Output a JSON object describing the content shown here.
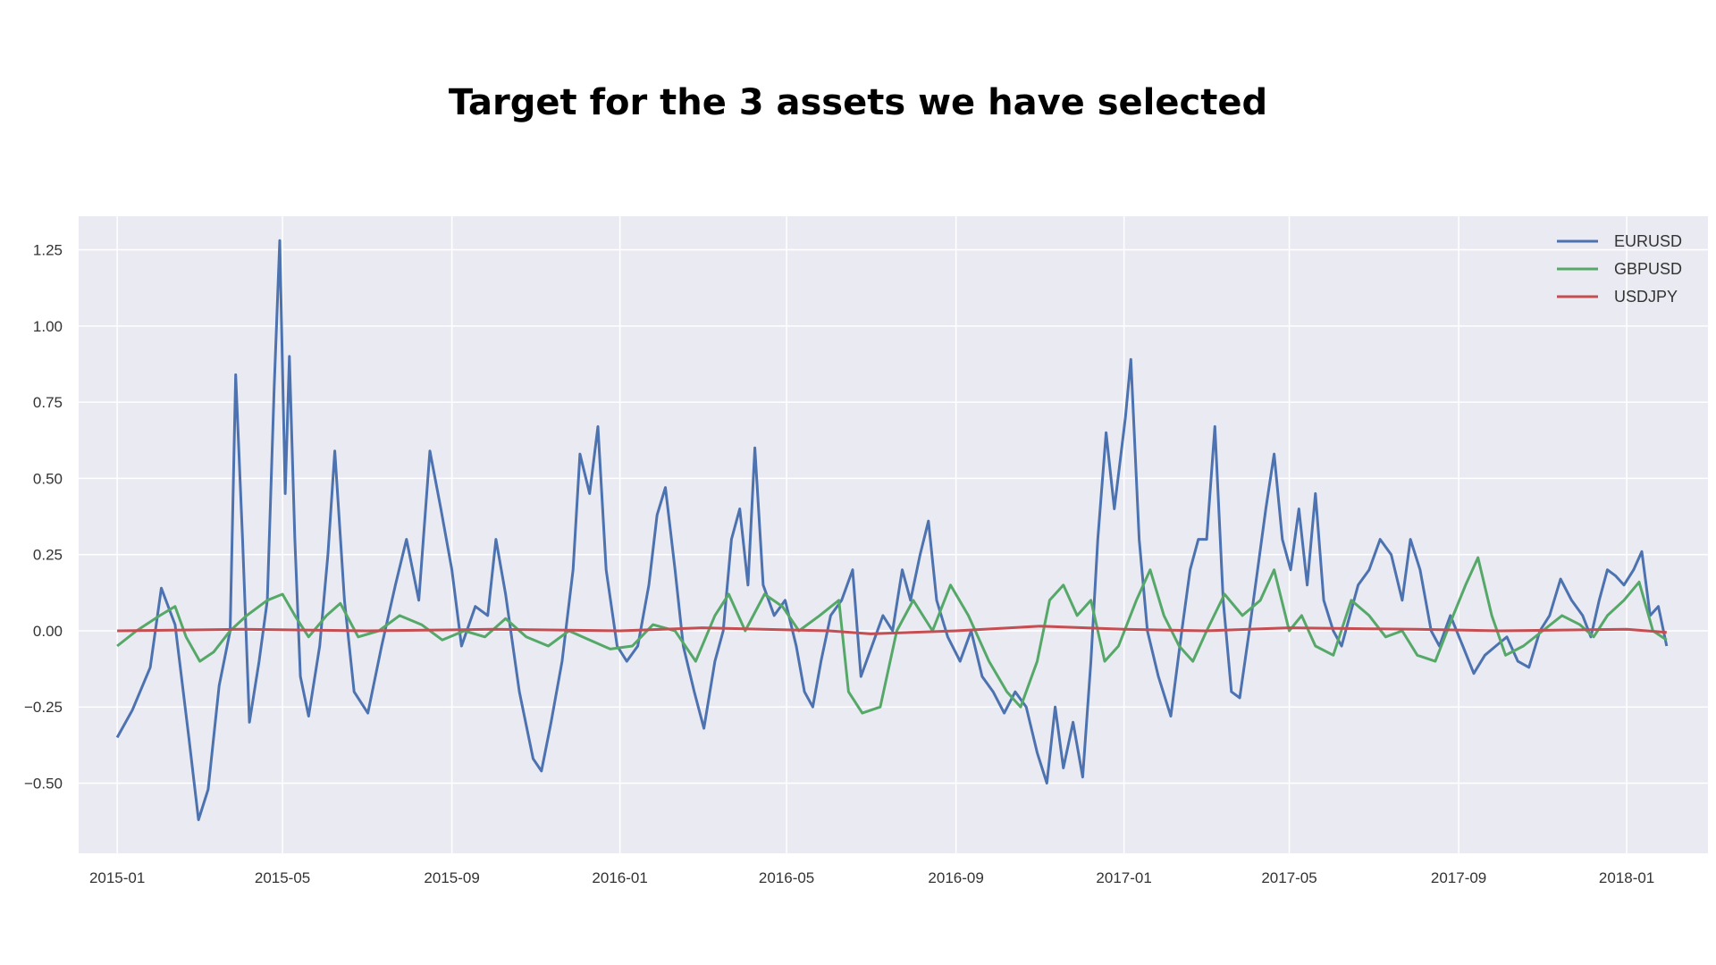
{
  "page": {
    "title": "Target for the 3 assets we have selected"
  },
  "chart_data": {
    "type": "line",
    "title": "",
    "xlabel": "",
    "ylabel": "",
    "x_range": [
      "2014-12-04",
      "2018-03-01"
    ],
    "ylim": [
      -0.73,
      1.36
    ],
    "x_ticks": [
      "2015-01",
      "2015-05",
      "2015-09",
      "2016-01",
      "2016-05",
      "2016-09",
      "2017-01",
      "2017-05",
      "2017-09",
      "2018-01"
    ],
    "y_ticks": [
      -0.5,
      -0.25,
      0,
      0.25,
      0.5,
      0.75,
      1,
      1.25
    ],
    "y_tick_labels": [
      "−0.50",
      "−0.25",
      "0.00",
      "0.25",
      "0.50",
      "0.75",
      "1.00",
      "1.25"
    ],
    "grid": true,
    "legend_position": "top-right",
    "colors": {
      "background": "#eaeaf2",
      "grid": "#ffffff"
    },
    "series": [
      {
        "name": "EURUSD",
        "color": "#4c72b0",
        "points": [
          [
            "2015-01-01",
            -0.35
          ],
          [
            "2015-01-12",
            -0.26
          ],
          [
            "2015-01-25",
            -0.12
          ],
          [
            "2015-02-02",
            0.14
          ],
          [
            "2015-02-12",
            0.02
          ],
          [
            "2015-02-22",
            -0.35
          ],
          [
            "2015-03-01",
            -0.62
          ],
          [
            "2015-03-08",
            -0.52
          ],
          [
            "2015-03-16",
            -0.18
          ],
          [
            "2015-03-24",
            0.0
          ],
          [
            "2015-03-28",
            0.84
          ],
          [
            "2015-04-02",
            0.3
          ],
          [
            "2015-04-07",
            -0.3
          ],
          [
            "2015-04-14",
            -0.1
          ],
          [
            "2015-04-20",
            0.1
          ],
          [
            "2015-04-25",
            0.8
          ],
          [
            "2015-04-29",
            1.28
          ],
          [
            "2015-05-03",
            0.45
          ],
          [
            "2015-05-06",
            0.9
          ],
          [
            "2015-05-10",
            0.3
          ],
          [
            "2015-05-14",
            -0.15
          ],
          [
            "2015-05-20",
            -0.28
          ],
          [
            "2015-05-28",
            -0.05
          ],
          [
            "2015-06-03",
            0.25
          ],
          [
            "2015-06-08",
            0.59
          ],
          [
            "2015-06-15",
            0.1
          ],
          [
            "2015-06-22",
            -0.2
          ],
          [
            "2015-07-02",
            -0.27
          ],
          [
            "2015-07-12",
            -0.05
          ],
          [
            "2015-07-22",
            0.15
          ],
          [
            "2015-07-30",
            0.3
          ],
          [
            "2015-08-08",
            0.1
          ],
          [
            "2015-08-16",
            0.59
          ],
          [
            "2015-08-24",
            0.4
          ],
          [
            "2015-09-01",
            0.2
          ],
          [
            "2015-09-08",
            -0.05
          ],
          [
            "2015-09-18",
            0.08
          ],
          [
            "2015-09-27",
            0.05
          ],
          [
            "2015-10-03",
            0.3
          ],
          [
            "2015-10-10",
            0.12
          ],
          [
            "2015-10-20",
            -0.2
          ],
          [
            "2015-10-30",
            -0.42
          ],
          [
            "2015-11-05",
            -0.46
          ],
          [
            "2015-11-12",
            -0.3
          ],
          [
            "2015-11-20",
            -0.1
          ],
          [
            "2015-11-28",
            0.2
          ],
          [
            "2015-12-03",
            0.58
          ],
          [
            "2015-12-10",
            0.45
          ],
          [
            "2015-12-16",
            0.67
          ],
          [
            "2015-12-22",
            0.2
          ],
          [
            "2015-12-30",
            -0.05
          ],
          [
            "2016-01-06",
            -0.1
          ],
          [
            "2016-01-14",
            -0.05
          ],
          [
            "2016-01-22",
            0.15
          ],
          [
            "2016-01-28",
            0.38
          ],
          [
            "2016-02-03",
            0.47
          ],
          [
            "2016-02-10",
            0.2
          ],
          [
            "2016-02-16",
            -0.05
          ],
          [
            "2016-02-24",
            -0.2
          ],
          [
            "2016-03-02",
            -0.32
          ],
          [
            "2016-03-10",
            -0.1
          ],
          [
            "2016-03-16",
            0.0
          ],
          [
            "2016-03-22",
            0.3
          ],
          [
            "2016-03-28",
            0.4
          ],
          [
            "2016-04-03",
            0.15
          ],
          [
            "2016-04-08",
            0.6
          ],
          [
            "2016-04-14",
            0.15
          ],
          [
            "2016-04-22",
            0.05
          ],
          [
            "2016-04-30",
            0.1
          ],
          [
            "2016-05-08",
            -0.05
          ],
          [
            "2016-05-14",
            -0.2
          ],
          [
            "2016-05-20",
            -0.25
          ],
          [
            "2016-05-26",
            -0.1
          ],
          [
            "2016-06-02",
            0.05
          ],
          [
            "2016-06-10",
            0.1
          ],
          [
            "2016-06-18",
            0.2
          ],
          [
            "2016-06-24",
            -0.15
          ],
          [
            "2016-07-02",
            -0.05
          ],
          [
            "2016-07-10",
            0.05
          ],
          [
            "2016-07-17",
            0.0
          ],
          [
            "2016-07-24",
            0.2
          ],
          [
            "2016-07-30",
            0.1
          ],
          [
            "2016-08-06",
            0.25
          ],
          [
            "2016-08-12",
            0.36
          ],
          [
            "2016-08-18",
            0.1
          ],
          [
            "2016-08-26",
            -0.02
          ],
          [
            "2016-09-04",
            -0.1
          ],
          [
            "2016-09-12",
            0.0
          ],
          [
            "2016-09-20",
            -0.15
          ],
          [
            "2016-09-28",
            -0.2
          ],
          [
            "2016-10-06",
            -0.27
          ],
          [
            "2016-10-14",
            -0.2
          ],
          [
            "2016-10-22",
            -0.25
          ],
          [
            "2016-10-30",
            -0.4
          ],
          [
            "2016-11-06",
            -0.5
          ],
          [
            "2016-11-12",
            -0.25
          ],
          [
            "2016-11-18",
            -0.45
          ],
          [
            "2016-11-25",
            -0.3
          ],
          [
            "2016-12-02",
            -0.48
          ],
          [
            "2016-12-08",
            -0.1
          ],
          [
            "2016-12-13",
            0.3
          ],
          [
            "2016-12-19",
            0.65
          ],
          [
            "2016-12-25",
            0.4
          ],
          [
            "2017-01-02",
            0.7
          ],
          [
            "2017-01-06",
            0.89
          ],
          [
            "2017-01-12",
            0.3
          ],
          [
            "2017-01-18",
            0.0
          ],
          [
            "2017-01-26",
            -0.15
          ],
          [
            "2017-02-04",
            -0.28
          ],
          [
            "2017-02-12",
            0.0
          ],
          [
            "2017-02-18",
            0.2
          ],
          [
            "2017-02-24",
            0.3
          ],
          [
            "2017-03-02",
            0.3
          ],
          [
            "2017-03-08",
            0.67
          ],
          [
            "2017-03-14",
            0.1
          ],
          [
            "2017-03-20",
            -0.2
          ],
          [
            "2017-03-26",
            -0.22
          ],
          [
            "2017-04-02",
            0.0
          ],
          [
            "2017-04-08",
            0.2
          ],
          [
            "2017-04-14",
            0.4
          ],
          [
            "2017-04-20",
            0.58
          ],
          [
            "2017-04-26",
            0.3
          ],
          [
            "2017-05-02",
            0.2
          ],
          [
            "2017-05-08",
            0.4
          ],
          [
            "2017-05-14",
            0.15
          ],
          [
            "2017-05-20",
            0.45
          ],
          [
            "2017-05-26",
            0.1
          ],
          [
            "2017-06-02",
            0.0
          ],
          [
            "2017-06-08",
            -0.05
          ],
          [
            "2017-06-14",
            0.05
          ],
          [
            "2017-06-20",
            0.15
          ],
          [
            "2017-06-28",
            0.2
          ],
          [
            "2017-07-06",
            0.3
          ],
          [
            "2017-07-14",
            0.25
          ],
          [
            "2017-07-22",
            0.1
          ],
          [
            "2017-07-28",
            0.3
          ],
          [
            "2017-08-04",
            0.2
          ],
          [
            "2017-08-12",
            0.0
          ],
          [
            "2017-08-18",
            -0.05
          ],
          [
            "2017-08-26",
            0.05
          ],
          [
            "2017-09-04",
            -0.05
          ],
          [
            "2017-09-12",
            -0.14
          ],
          [
            "2017-09-20",
            -0.08
          ],
          [
            "2017-09-28",
            -0.05
          ],
          [
            "2017-10-06",
            -0.02
          ],
          [
            "2017-10-14",
            -0.1
          ],
          [
            "2017-10-22",
            -0.12
          ],
          [
            "2017-10-30",
            0.0
          ],
          [
            "2017-11-06",
            0.05
          ],
          [
            "2017-11-14",
            0.17
          ],
          [
            "2017-11-22",
            0.1
          ],
          [
            "2017-11-30",
            0.05
          ],
          [
            "2017-12-06",
            -0.02
          ],
          [
            "2017-12-12",
            0.1
          ],
          [
            "2017-12-18",
            0.2
          ],
          [
            "2017-12-24",
            0.18
          ],
          [
            "2017-12-30",
            0.15
          ],
          [
            "2018-01-06",
            0.2
          ],
          [
            "2018-01-12",
            0.26
          ],
          [
            "2018-01-18",
            0.05
          ],
          [
            "2018-01-24",
            0.08
          ],
          [
            "2018-01-30",
            -0.05
          ]
        ]
      },
      {
        "name": "GBPUSD",
        "color": "#55a868",
        "points": [
          [
            "2015-01-01",
            -0.05
          ],
          [
            "2015-01-15",
            0.0
          ],
          [
            "2015-02-01",
            0.05
          ],
          [
            "2015-02-12",
            0.08
          ],
          [
            "2015-02-20",
            -0.02
          ],
          [
            "2015-03-02",
            -0.1
          ],
          [
            "2015-03-12",
            -0.07
          ],
          [
            "2015-03-24",
            0.0
          ],
          [
            "2015-04-05",
            0.05
          ],
          [
            "2015-04-20",
            0.1
          ],
          [
            "2015-05-01",
            0.12
          ],
          [
            "2015-05-10",
            0.05
          ],
          [
            "2015-05-20",
            -0.02
          ],
          [
            "2015-06-02",
            0.05
          ],
          [
            "2015-06-12",
            0.09
          ],
          [
            "2015-06-25",
            -0.02
          ],
          [
            "2015-07-10",
            0.0
          ],
          [
            "2015-07-25",
            0.05
          ],
          [
            "2015-08-10",
            0.02
          ],
          [
            "2015-08-25",
            -0.03
          ],
          [
            "2015-09-10",
            0.0
          ],
          [
            "2015-09-25",
            -0.02
          ],
          [
            "2015-10-10",
            0.04
          ],
          [
            "2015-10-25",
            -0.02
          ],
          [
            "2015-11-10",
            -0.05
          ],
          [
            "2015-11-25",
            0.0
          ],
          [
            "2015-12-10",
            -0.03
          ],
          [
            "2015-12-25",
            -0.06
          ],
          [
            "2016-01-10",
            -0.05
          ],
          [
            "2016-01-25",
            0.02
          ],
          [
            "2016-02-10",
            0.0
          ],
          [
            "2016-02-25",
            -0.1
          ],
          [
            "2016-03-10",
            0.05
          ],
          [
            "2016-03-20",
            0.12
          ],
          [
            "2016-04-01",
            0.0
          ],
          [
            "2016-04-15",
            0.12
          ],
          [
            "2016-04-28",
            0.08
          ],
          [
            "2016-05-10",
            0.0
          ],
          [
            "2016-05-25",
            0.05
          ],
          [
            "2016-06-08",
            0.1
          ],
          [
            "2016-06-15",
            -0.2
          ],
          [
            "2016-06-25",
            -0.27
          ],
          [
            "2016-07-08",
            -0.25
          ],
          [
            "2016-07-20",
            0.0
          ],
          [
            "2016-08-01",
            0.1
          ],
          [
            "2016-08-15",
            0.0
          ],
          [
            "2016-08-28",
            0.15
          ],
          [
            "2016-09-10",
            0.05
          ],
          [
            "2016-09-25",
            -0.1
          ],
          [
            "2016-10-08",
            -0.2
          ],
          [
            "2016-10-18",
            -0.25
          ],
          [
            "2016-10-30",
            -0.1
          ],
          [
            "2016-11-08",
            0.1
          ],
          [
            "2016-11-18",
            0.15
          ],
          [
            "2016-11-28",
            0.05
          ],
          [
            "2016-12-08",
            0.1
          ],
          [
            "2016-12-18",
            -0.1
          ],
          [
            "2016-12-28",
            -0.05
          ],
          [
            "2017-01-10",
            0.1
          ],
          [
            "2017-01-20",
            0.2
          ],
          [
            "2017-01-30",
            0.05
          ],
          [
            "2017-02-10",
            -0.05
          ],
          [
            "2017-02-20",
            -0.1
          ],
          [
            "2017-03-02",
            0.0
          ],
          [
            "2017-03-15",
            0.12
          ],
          [
            "2017-03-28",
            0.05
          ],
          [
            "2017-04-10",
            0.1
          ],
          [
            "2017-04-20",
            0.2
          ],
          [
            "2017-05-01",
            0.0
          ],
          [
            "2017-05-10",
            0.05
          ],
          [
            "2017-05-20",
            -0.05
          ],
          [
            "2017-06-02",
            -0.08
          ],
          [
            "2017-06-15",
            0.1
          ],
          [
            "2017-06-28",
            0.05
          ],
          [
            "2017-07-10",
            -0.02
          ],
          [
            "2017-07-22",
            0.0
          ],
          [
            "2017-08-02",
            -0.08
          ],
          [
            "2017-08-15",
            -0.1
          ],
          [
            "2017-08-28",
            0.05
          ],
          [
            "2017-09-06",
            0.15
          ],
          [
            "2017-09-15",
            0.24
          ],
          [
            "2017-09-25",
            0.05
          ],
          [
            "2017-10-05",
            -0.08
          ],
          [
            "2017-10-18",
            -0.05
          ],
          [
            "2017-11-01",
            0.0
          ],
          [
            "2017-11-15",
            0.05
          ],
          [
            "2017-11-28",
            0.02
          ],
          [
            "2017-12-08",
            -0.02
          ],
          [
            "2017-12-18",
            0.05
          ],
          [
            "2017-12-30",
            0.1
          ],
          [
            "2018-01-10",
            0.16
          ],
          [
            "2018-01-20",
            0.0
          ],
          [
            "2018-01-30",
            -0.03
          ]
        ]
      },
      {
        "name": "USDJPY",
        "color": "#c44e52",
        "points": [
          [
            "2015-01-01",
            0.0
          ],
          [
            "2015-04-01",
            0.005
          ],
          [
            "2015-07-01",
            0.0
          ],
          [
            "2015-10-01",
            0.005
          ],
          [
            "2016-01-01",
            0.0
          ],
          [
            "2016-03-01",
            0.01
          ],
          [
            "2016-06-01",
            0.0
          ],
          [
            "2016-07-01",
            -0.01
          ],
          [
            "2016-09-01",
            0.0
          ],
          [
            "2016-11-01",
            0.015
          ],
          [
            "2017-01-01",
            0.005
          ],
          [
            "2017-03-01",
            0.0
          ],
          [
            "2017-05-01",
            0.01
          ],
          [
            "2017-08-01",
            0.005
          ],
          [
            "2017-10-01",
            0.0
          ],
          [
            "2018-01-01",
            0.005
          ],
          [
            "2018-01-30",
            -0.005
          ]
        ]
      }
    ]
  }
}
